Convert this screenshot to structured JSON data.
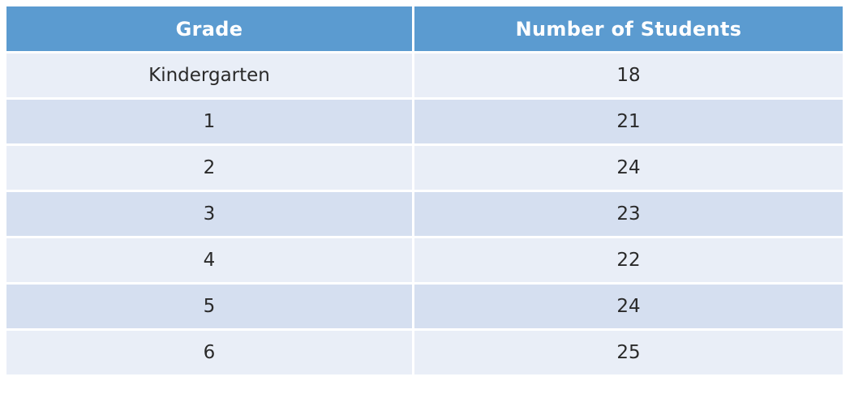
{
  "table": {
    "headers": [
      "Grade",
      "Number of Students"
    ],
    "rows": [
      [
        "Kindergarten",
        "18"
      ],
      [
        "1",
        "21"
      ],
      [
        "2",
        "24"
      ],
      [
        "3",
        "23"
      ],
      [
        "4",
        "22"
      ],
      [
        "5",
        "24"
      ],
      [
        "6",
        "25"
      ]
    ]
  },
  "colors": {
    "header_bg": "#5b9bd0",
    "header_text": "#ffffff",
    "row_light": "#e9eef7",
    "row_dark": "#d5dff0",
    "body_text": "#2a2a2a"
  }
}
